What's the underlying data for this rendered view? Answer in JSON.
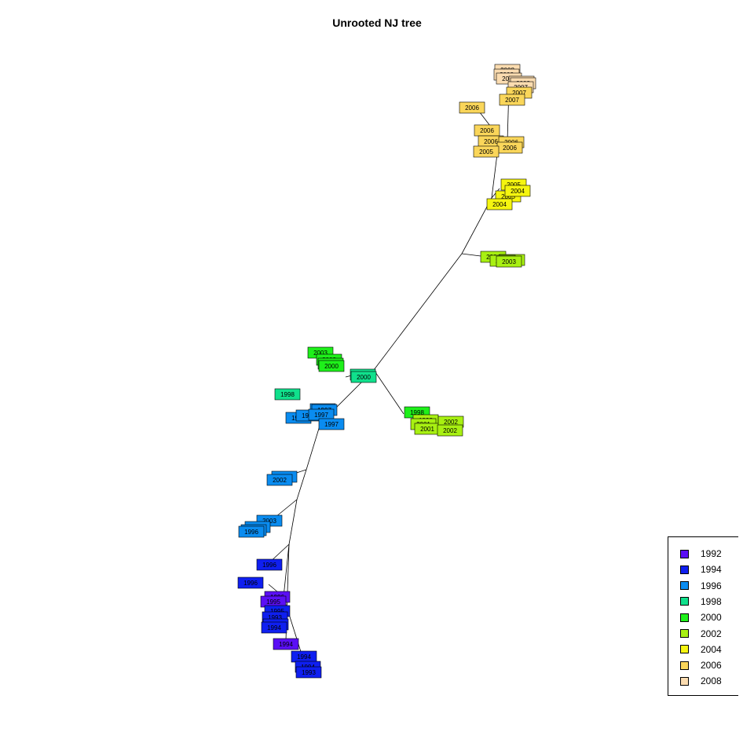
{
  "title": "Unrooted NJ tree",
  "legend": [
    {
      "label": "1992",
      "color": "#5b0ff5"
    },
    {
      "label": "1994",
      "color": "#0f1ff0"
    },
    {
      "label": "1996",
      "color": "#0a8cf0"
    },
    {
      "label": "1998",
      "color": "#10e08c"
    },
    {
      "label": "2000",
      "color": "#1ef01a"
    },
    {
      "label": "2002",
      "color": "#a8f012"
    },
    {
      "label": "2004",
      "color": "#f5f510"
    },
    {
      "label": "2006",
      "color": "#fad65a"
    },
    {
      "label": "2008",
      "color": "#fbdcb0"
    }
  ],
  "tip_labels": [
    "2008",
    "2008",
    "2008",
    "2008",
    "2008",
    "2007",
    "2007",
    "2007",
    "2006",
    "2006",
    "2006",
    "2006",
    "2006",
    "2005",
    "2005",
    "2005",
    "2004",
    "2004",
    "2004",
    "2004",
    "2003",
    "2003",
    "2003",
    "2003",
    "2000",
    "2000",
    "2000",
    "2000",
    "1998",
    "1999",
    "1999",
    "1999",
    "1997",
    "1997",
    "1997",
    "1998",
    "1998",
    "2001",
    "2001",
    "2002",
    "2002",
    "2002",
    "2002",
    "2003",
    "1996",
    "1996",
    "1996",
    "1996",
    "1996",
    "1996",
    "1995",
    "1995",
    "1993",
    "1993",
    "1994",
    "1994",
    "1994",
    "1994",
    "1993",
    "1995",
    "1995",
    "1995"
  ]
}
